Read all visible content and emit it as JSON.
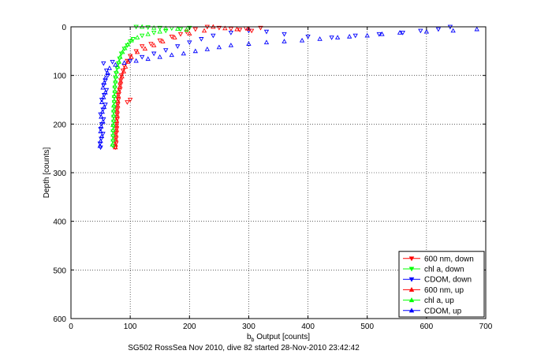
{
  "chart_data": {
    "type": "scatter",
    "title": "",
    "caption": "SG502 RossSea Nov 2010, dive 82 started 28-Nov-2010 23:42:42",
    "xlabel_main": "b",
    "xlabel_sub": "b",
    "xlabel_rest": " Output [counts]",
    "ylabel": "Depth [counts]",
    "xlim": [
      0,
      700
    ],
    "ylim": [
      0,
      600
    ],
    "y_reversed": true,
    "grid": true,
    "legend_position": "bottom-right",
    "x_ticks": [
      0,
      100,
      200,
      300,
      400,
      500,
      600,
      700
    ],
    "y_ticks": [
      0,
      100,
      200,
      300,
      400,
      500,
      600
    ],
    "colors": {
      "red": "#ff0000",
      "green": "#00ff00",
      "blue": "#0000ff"
    },
    "series": [
      {
        "name": "600 nm, down",
        "marker": "triangle-down",
        "color": "#ff0000",
        "points": [
          [
            230,
            0
          ],
          [
            250,
            2
          ],
          [
            270,
            4
          ],
          [
            285,
            6
          ],
          [
            295,
            3
          ],
          [
            305,
            8
          ],
          [
            320,
            2
          ],
          [
            210,
            5
          ],
          [
            195,
            10
          ],
          [
            185,
            15
          ],
          [
            170,
            20
          ],
          [
            150,
            28
          ],
          [
            135,
            35
          ],
          [
            120,
            40
          ],
          [
            110,
            50
          ],
          [
            100,
            60
          ],
          [
            95,
            70
          ],
          [
            90,
            80
          ],
          [
            88,
            90
          ],
          [
            85,
            100
          ],
          [
            84,
            110
          ],
          [
            83,
            120
          ],
          [
            82,
            130
          ],
          [
            80,
            140
          ],
          [
            80,
            150
          ],
          [
            79,
            160
          ],
          [
            78,
            170
          ],
          [
            78,
            180
          ],
          [
            78,
            190
          ],
          [
            77,
            200
          ],
          [
            77,
            210
          ],
          [
            76,
            220
          ],
          [
            76,
            230
          ],
          [
            76,
            240
          ],
          [
            75,
            248
          ],
          [
            100,
            150
          ],
          [
            95,
            155
          ]
        ]
      },
      {
        "name": "chl a, down",
        "marker": "triangle-down",
        "color": "#00ff00",
        "points": [
          [
            110,
            0
          ],
          [
            130,
            1
          ],
          [
            150,
            2
          ],
          [
            170,
            3
          ],
          [
            185,
            5
          ],
          [
            200,
            2
          ],
          [
            160,
            8
          ],
          [
            140,
            12
          ],
          [
            120,
            18
          ],
          [
            105,
            25
          ],
          [
            100,
            30
          ],
          [
            95,
            38
          ],
          [
            90,
            45
          ],
          [
            85,
            55
          ],
          [
            82,
            65
          ],
          [
            80,
            75
          ],
          [
            78,
            85
          ],
          [
            76,
            95
          ],
          [
            75,
            105
          ],
          [
            75,
            115
          ],
          [
            74,
            125
          ],
          [
            74,
            135
          ],
          [
            73,
            145
          ],
          [
            73,
            155
          ],
          [
            73,
            165
          ],
          [
            72,
            175
          ],
          [
            72,
            185
          ],
          [
            72,
            195
          ],
          [
            72,
            205
          ],
          [
            71,
            215
          ],
          [
            71,
            225
          ],
          [
            71,
            235
          ],
          [
            71,
            245
          ]
        ]
      },
      {
        "name": "CDOM, down",
        "marker": "triangle-down",
        "color": "#0000ff",
        "points": [
          [
            640,
            0
          ],
          [
            620,
            5
          ],
          [
            590,
            8
          ],
          [
            560,
            12
          ],
          [
            520,
            15
          ],
          [
            480,
            18
          ],
          [
            440,
            22
          ],
          [
            400,
            20
          ],
          [
            360,
            15
          ],
          [
            330,
            10
          ],
          [
            300,
            8
          ],
          [
            270,
            12
          ],
          [
            240,
            18
          ],
          [
            220,
            25
          ],
          [
            200,
            32
          ],
          [
            180,
            40
          ],
          [
            160,
            48
          ],
          [
            140,
            55
          ],
          [
            120,
            62
          ],
          [
            100,
            70
          ],
          [
            70,
            72
          ],
          [
            55,
            75
          ],
          [
            60,
            90
          ],
          [
            62,
            100
          ],
          [
            58,
            110
          ],
          [
            55,
            120
          ],
          [
            60,
            130
          ],
          [
            56,
            140
          ],
          [
            52,
            150
          ],
          [
            58,
            160
          ],
          [
            54,
            170
          ],
          [
            50,
            180
          ],
          [
            55,
            190
          ],
          [
            52,
            200
          ],
          [
            50,
            210
          ],
          [
            54,
            220
          ],
          [
            51,
            230
          ],
          [
            49,
            240
          ],
          [
            50,
            248
          ]
        ]
      },
      {
        "name": "600 nm, up",
        "marker": "triangle-up",
        "color": "#ff0000",
        "points": [
          [
            240,
            0
          ],
          [
            260,
            3
          ],
          [
            280,
            5
          ],
          [
            300,
            4
          ],
          [
            225,
            8
          ],
          [
            200,
            14
          ],
          [
            175,
            22
          ],
          [
            155,
            30
          ],
          [
            140,
            38
          ],
          [
            125,
            45
          ],
          [
            112,
            52
          ],
          [
            102,
            62
          ],
          [
            96,
            72
          ],
          [
            92,
            82
          ],
          [
            89,
            92
          ],
          [
            86,
            102
          ],
          [
            84,
            112
          ],
          [
            83,
            122
          ],
          [
            81,
            132
          ],
          [
            80,
            142
          ],
          [
            79,
            152
          ],
          [
            79,
            162
          ],
          [
            78,
            172
          ],
          [
            78,
            182
          ],
          [
            77,
            192
          ],
          [
            77,
            202
          ],
          [
            77,
            212
          ],
          [
            76,
            222
          ],
          [
            76,
            232
          ],
          [
            75,
            242
          ],
          [
            75,
            248
          ]
        ]
      },
      {
        "name": "chl a, up",
        "marker": "triangle-up",
        "color": "#00ff00",
        "points": [
          [
            120,
            0
          ],
          [
            140,
            2
          ],
          [
            160,
            3
          ],
          [
            180,
            4
          ],
          [
            195,
            6
          ],
          [
            150,
            10
          ],
          [
            130,
            15
          ],
          [
            112,
            22
          ],
          [
            102,
            28
          ],
          [
            96,
            36
          ],
          [
            91,
            44
          ],
          [
            87,
            52
          ],
          [
            83,
            62
          ],
          [
            81,
            72
          ],
          [
            79,
            82
          ],
          [
            77,
            92
          ],
          [
            76,
            102
          ],
          [
            75,
            112
          ],
          [
            74,
            122
          ],
          [
            74,
            132
          ],
          [
            73,
            142
          ],
          [
            73,
            152
          ],
          [
            72,
            162
          ],
          [
            72,
            172
          ],
          [
            72,
            182
          ],
          [
            72,
            192
          ],
          [
            71,
            202
          ],
          [
            71,
            212
          ],
          [
            71,
            222
          ],
          [
            71,
            232
          ],
          [
            70,
            242
          ]
        ]
      },
      {
        "name": "CDOM, up",
        "marker": "triangle-up",
        "color": "#0000ff",
        "points": [
          [
            685,
            5
          ],
          [
            645,
            8
          ],
          [
            600,
            10
          ],
          [
            555,
            12
          ],
          [
            525,
            15
          ],
          [
            500,
            18
          ],
          [
            470,
            20
          ],
          [
            450,
            22
          ],
          [
            420,
            25
          ],
          [
            390,
            28
          ],
          [
            360,
            30
          ],
          [
            330,
            32
          ],
          [
            300,
            35
          ],
          [
            270,
            38
          ],
          [
            250,
            42
          ],
          [
            230,
            46
          ],
          [
            210,
            50
          ],
          [
            190,
            55
          ],
          [
            170,
            58
          ],
          [
            150,
            62
          ],
          [
            130,
            66
          ],
          [
            110,
            70
          ],
          [
            90,
            74
          ],
          [
            75,
            78
          ],
          [
            65,
            85
          ],
          [
            62,
            95
          ],
          [
            58,
            105
          ],
          [
            56,
            115
          ],
          [
            54,
            125
          ],
          [
            58,
            135
          ],
          [
            55,
            145
          ],
          [
            52,
            155
          ],
          [
            56,
            165
          ],
          [
            53,
            175
          ],
          [
            51,
            185
          ],
          [
            54,
            195
          ],
          [
            51,
            205
          ],
          [
            50,
            215
          ],
          [
            52,
            225
          ],
          [
            50,
            235
          ],
          [
            49,
            245
          ]
        ]
      }
    ]
  }
}
